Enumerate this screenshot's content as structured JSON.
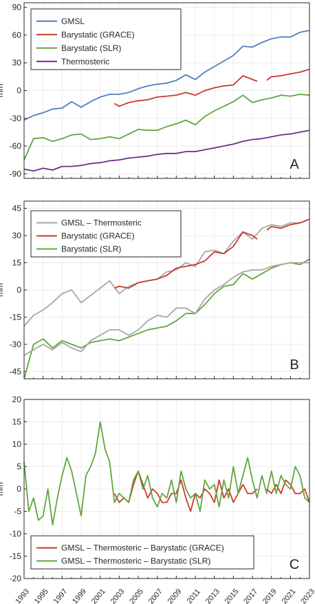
{
  "chart_data": [
    {
      "type": "line",
      "panel_label": "A",
      "xlabel": "",
      "ylabel": "mm",
      "xlim": [
        1993,
        2023
      ],
      "ylim": [
        -95,
        95
      ],
      "yticks": [
        "90",
        "60",
        "30",
        "0",
        "-30",
        "-60",
        "-90"
      ],
      "grid": true,
      "legend_position": "top-left",
      "colors": {
        "GMSL": "#4a7fbf",
        "Barystatic (GRACE)": "#c9392a",
        "Barystatic (SLR)": "#5ea53b",
        "Thermosteric": "#6e2b8c"
      },
      "series": [
        {
          "name": "GMSL",
          "x": [
            1993,
            1994,
            1995,
            1996,
            1997,
            1998,
            1999,
            2000,
            2001,
            2002,
            2003,
            2004,
            2005,
            2006,
            2007,
            2008,
            2009,
            2010,
            2011,
            2012,
            2013,
            2014,
            2015,
            2016,
            2017,
            2018,
            2019,
            2020,
            2021,
            2022,
            2023
          ],
          "values": [
            -32,
            -27,
            -24,
            -20,
            -19,
            -12,
            -18,
            -12,
            -7,
            -4,
            -4,
            -2,
            2,
            5,
            7,
            8,
            11,
            17,
            12,
            20,
            26,
            32,
            38,
            48,
            47,
            52,
            56,
            58,
            58,
            63,
            65
          ]
        },
        {
          "name": "Barystatic (GRACE)",
          "x": [
            2002.5,
            2003,
            2004,
            2005,
            2006,
            2007,
            2008,
            2009,
            2010,
            2011,
            2012,
            2013,
            2014,
            2015,
            2016,
            2017,
            2017.5,
            null,
            2018.5,
            2019,
            2020,
            2021,
            2022,
            2023
          ],
          "values": [
            -14,
            -17,
            -13,
            -11,
            -10,
            -7,
            -6,
            -5,
            -2,
            -5,
            0,
            3,
            5,
            6,
            16,
            12,
            10,
            null,
            11,
            15,
            16,
            18,
            20,
            23
          ]
        },
        {
          "name": "Barystatic (SLR)",
          "x": [
            1993,
            1994,
            1995,
            1996,
            1997,
            1998,
            1999,
            2000,
            2001,
            2002,
            2003,
            2004,
            2005,
            2006,
            2007,
            2008,
            2009,
            2010,
            2011,
            2012,
            2013,
            2014,
            2015,
            2016,
            2017,
            2018,
            2019,
            2020,
            2021,
            2022,
            2023
          ],
          "values": [
            -75,
            -52,
            -51,
            -55,
            -52,
            -48,
            -47,
            -53,
            -52,
            -50,
            -52,
            -47,
            -42,
            -43,
            -43,
            -39,
            -36,
            -32,
            -37,
            -28,
            -22,
            -17,
            -12,
            -5,
            -13,
            -10,
            -8,
            -5,
            -6,
            -4,
            -5
          ]
        },
        {
          "name": "Thermosteric",
          "x": [
            1993,
            1994,
            1995,
            1996,
            1997,
            1998,
            1999,
            2000,
            2001,
            2002,
            2003,
            2004,
            2005,
            2006,
            2007,
            2008,
            2009,
            2010,
            2011,
            2012,
            2013,
            2014,
            2015,
            2016,
            2017,
            2018,
            2019,
            2020,
            2021,
            2022,
            2023
          ],
          "values": [
            -85,
            -87,
            -84,
            -86,
            -82,
            -82,
            -81,
            -79,
            -78,
            -76,
            -75,
            -73,
            -72,
            -71,
            -69,
            -68,
            -68,
            -66,
            -66,
            -64,
            -62,
            -60,
            -58,
            -55,
            -53,
            -52,
            -50,
            -48,
            -47,
            -45,
            -43
          ]
        }
      ]
    },
    {
      "type": "line",
      "panel_label": "B",
      "xlabel": "",
      "ylabel": "mm",
      "xlim": [
        1993,
        2023
      ],
      "ylim": [
        -49,
        49
      ],
      "yticks": [
        "45",
        "30",
        "15",
        "0",
        "-15",
        "-30",
        "-45"
      ],
      "grid": true,
      "legend_position": "top-left",
      "colors": {
        "GMSL – Thermosteric": "#a6a6a6",
        "Barystatic (GRACE)": "#c9392a",
        "Barystatic (SLR)": "#5ea53b"
      },
      "series": [
        {
          "name": "GMSL – Thermosteric",
          "x": [
            1993,
            1994,
            1995,
            1996,
            1997,
            1998,
            1999,
            2000,
            2001,
            2002,
            2003,
            2004,
            2005,
            2006,
            2007,
            2008,
            2009,
            2010,
            2011,
            2012,
            2013,
            2014,
            2015,
            2016,
            2017,
            2018,
            2019,
            2020,
            2021,
            2022,
            2023
          ],
          "values": [
            -20,
            -14,
            -11,
            -7,
            -2,
            0,
            -7,
            -3,
            1,
            5,
            -2,
            2,
            4,
            5,
            6,
            10,
            11,
            15,
            13,
            21,
            22,
            20,
            27,
            32,
            28,
            34,
            36,
            35,
            37,
            37,
            39
          ]
        },
        {
          "name": "Barystatic (GRACE)",
          "x": [
            2002.5,
            2003,
            2004,
            2005,
            2006,
            2007,
            2008,
            2009,
            2010,
            2011,
            2012,
            2013,
            2014,
            2015,
            2016,
            2017,
            2017.5,
            null,
            2018.5,
            2019,
            2020,
            2021,
            2022,
            2023
          ],
          "values": [
            1,
            2,
            1,
            4,
            5,
            6,
            8,
            12,
            13,
            14,
            16,
            21,
            20,
            24,
            32,
            30,
            28,
            null,
            33,
            35,
            34,
            36,
            37,
            39
          ]
        },
        {
          "name": "Barystatic (SLR)",
          "x": [
            1993,
            1994,
            1995,
            1996,
            1997,
            1998,
            1999,
            2000,
            2001,
            2002,
            2003,
            2004,
            2005,
            2006,
            2007,
            2008,
            2009,
            2010,
            2011,
            2012,
            2013,
            2014,
            2015,
            2016,
            2017,
            2018,
            2019,
            2020,
            2021,
            2022,
            2023
          ],
          "values": [
            -49,
            -30,
            -27,
            -32,
            -28,
            -30,
            -32,
            -29,
            -28,
            -27,
            -28,
            -26,
            -24,
            -22,
            -21,
            -20,
            -17,
            -13,
            -13,
            -8,
            -2,
            2,
            3,
            9,
            6,
            9,
            12,
            14,
            15,
            14,
            17
          ]
        },
        {
          "name": "GMSL – Thermosteric",
          "x": [
            1993,
            1994,
            1995,
            1996,
            1997,
            1998,
            1999,
            2000,
            2001,
            2002,
            2003,
            2004,
            2005,
            2006,
            2007,
            2008,
            2009,
            2010,
            2011,
            2012,
            2013,
            2014,
            2015,
            2016,
            2017,
            2018,
            2019,
            2020,
            2021,
            2022,
            2023
          ],
          "values": [
            -36,
            -33,
            -30,
            -33,
            -29,
            -32,
            -34,
            -28,
            -25,
            -22,
            -22,
            -25,
            -22,
            -17,
            -14,
            -15,
            -10,
            -10,
            -13,
            -5,
            0,
            3,
            7,
            10,
            11,
            11,
            13,
            14,
            15,
            15,
            15
          ]
        }
      ]
    },
    {
      "type": "line",
      "panel_label": "C",
      "xlabel": "",
      "ylabel": "mm",
      "xlim": [
        1993,
        2023
      ],
      "ylim": [
        -20,
        20
      ],
      "yticks": [
        "20",
        "15",
        "10",
        "5",
        "0",
        "-5",
        "-10",
        "-15",
        "-20"
      ],
      "xticks": [
        "1993",
        "1995",
        "1997",
        "1999",
        "2001",
        "2003",
        "2005",
        "2007",
        "2009",
        "2011",
        "2013",
        "2015",
        "2017",
        "2019",
        "2021",
        "2023"
      ],
      "grid": true,
      "legend_position": "bottom-left",
      "colors": {
        "GMSL – Thermosteric – Barystatic (GRACE)": "#c9392a",
        "GMSL – Thermosteric – Barystatic (SLR)": "#5ea53b"
      },
      "series": [
        {
          "name": "GMSL – Thermosteric – Barystatic (GRACE)",
          "x": [
            2002.5,
            2003,
            2003.5,
            2004,
            2004.5,
            2005,
            2005.5,
            2006,
            2006.5,
            2007,
            2007.5,
            2008,
            2008.5,
            2009,
            2009.5,
            2010,
            2010.5,
            2011,
            2011.5,
            2012,
            2012.5,
            2013,
            2013.5,
            2014,
            2014.5,
            2015,
            2015.5,
            2016,
            2016.5,
            2017,
            2017.5,
            null,
            2018.5,
            2019,
            2019.5,
            2020,
            2020.5,
            2021,
            2021.5,
            2022,
            2022.5,
            2023
          ],
          "values": [
            -1,
            -3,
            -2,
            -3,
            1,
            4,
            1,
            -2,
            0,
            -1,
            -3,
            -3,
            -1,
            -1,
            2,
            -2,
            -5,
            -1,
            -2,
            0,
            -1,
            -3,
            2,
            -2,
            0,
            -3,
            -1,
            1,
            -1,
            -1,
            0,
            null,
            0,
            -1,
            1,
            -1,
            2,
            1,
            -1,
            -1,
            0,
            -3
          ]
        },
        {
          "name": "GMSL – Thermosteric – Barystatic (SLR)",
          "x": [
            1993,
            1993.5,
            1994,
            1994.5,
            1995,
            1995.5,
            1996,
            1996.5,
            1997,
            1997.5,
            1998,
            1998.5,
            1999,
            1999.5,
            2000,
            2000.5,
            2001,
            2001.5,
            2002,
            2002.5,
            2003,
            2003.5,
            2004,
            2004.5,
            2005,
            2005.5,
            2006,
            2006.5,
            2007,
            2007.5,
            2008,
            2008.5,
            2009,
            2009.5,
            2010,
            2010.5,
            2011,
            2011.5,
            2012,
            2012.5,
            2013,
            2013.5,
            2014,
            2014.5,
            2015,
            2015.5,
            2016,
            2016.5,
            2017,
            2017.5,
            2018,
            2018.5,
            2019,
            2019.5,
            2020,
            2020.5,
            2021,
            2021.5,
            2022,
            2022.5,
            2023
          ],
          "values": [
            6,
            -5,
            -2,
            -7,
            -6,
            0,
            -8,
            -2,
            3,
            7,
            4,
            -1,
            -6,
            3,
            5,
            8,
            15,
            9,
            6,
            -3,
            -1,
            -2,
            -3,
            2,
            4,
            0,
            3,
            -2,
            -4,
            -1,
            -2,
            2,
            -3,
            4,
            0,
            -2,
            -1,
            -5,
            2,
            0,
            1,
            -4,
            2,
            -2,
            5,
            -1,
            3,
            7,
            2,
            -2,
            3,
            -1,
            4,
            -1,
            3,
            1,
            0,
            5,
            3,
            -2,
            -3
          ]
        }
      ]
    }
  ]
}
